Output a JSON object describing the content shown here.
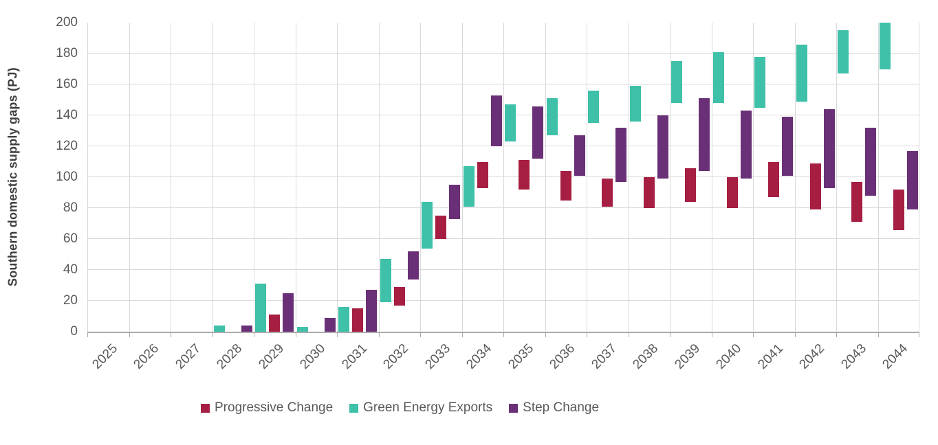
{
  "chart_data": {
    "type": "bar",
    "variant": "floating-range-columns",
    "title": "",
    "xlabel": "",
    "ylabel": "Southern domestic supply gaps (PJ)",
    "ylim": [
      0,
      200
    ],
    "yticks": [
      0,
      20,
      40,
      60,
      80,
      100,
      120,
      140,
      160,
      180,
      200
    ],
    "grid": true,
    "gridline_color": "#D9D9D9",
    "axis_color": "#ABABAB",
    "text_color": "#595959",
    "categories": [
      "2025",
      "2026",
      "2027",
      "2028",
      "2029",
      "2030",
      "2031",
      "2032",
      "2033",
      "2034",
      "2035",
      "2036",
      "2037",
      "2038",
      "2039",
      "2040",
      "2041",
      "2042",
      "2043",
      "2044"
    ],
    "series": [
      {
        "name": "Green Energy Exports",
        "color": "#3EC0A9",
        "ranges": [
          [
            0,
            0
          ],
          [
            0,
            0
          ],
          [
            0,
            0
          ],
          [
            0,
            4
          ],
          [
            0,
            31
          ],
          [
            0,
            3
          ],
          [
            0,
            16
          ],
          [
            19,
            47
          ],
          [
            54,
            84
          ],
          [
            81,
            107
          ],
          [
            123,
            147
          ],
          [
            127,
            151
          ],
          [
            135,
            156
          ],
          [
            136,
            159
          ],
          [
            148,
            175
          ],
          [
            148,
            181
          ],
          [
            145,
            178
          ],
          [
            149,
            186
          ],
          [
            167,
            195
          ],
          [
            170,
            200
          ]
        ]
      },
      {
        "name": "Progressive Change",
        "color": "#A61E42",
        "ranges": [
          [
            0,
            0
          ],
          [
            0,
            0
          ],
          [
            0,
            0
          ],
          [
            0,
            0
          ],
          [
            0,
            11
          ],
          [
            0,
            0
          ],
          [
            0,
            15
          ],
          [
            17,
            29
          ],
          [
            60,
            75
          ],
          [
            93,
            110
          ],
          [
            92,
            111
          ],
          [
            85,
            104
          ],
          [
            81,
            99
          ],
          [
            80,
            100
          ],
          [
            84,
            106
          ],
          [
            80,
            100
          ],
          [
            87,
            110
          ],
          [
            79,
            109
          ],
          [
            71,
            97
          ],
          [
            66,
            92
          ]
        ]
      },
      {
        "name": "Step Change",
        "color": "#6A3077",
        "ranges": [
          [
            0,
            0
          ],
          [
            0,
            0
          ],
          [
            0,
            0
          ],
          [
            0,
            4
          ],
          [
            0,
            25
          ],
          [
            0,
            9
          ],
          [
            0,
            27
          ],
          [
            34,
            52
          ],
          [
            73,
            95
          ],
          [
            120,
            153
          ],
          [
            112,
            146
          ],
          [
            101,
            127
          ],
          [
            97,
            132
          ],
          [
            99,
            140
          ],
          [
            104,
            151
          ],
          [
            99,
            143
          ],
          [
            101,
            139
          ],
          [
            93,
            144
          ],
          [
            88,
            132
          ],
          [
            79,
            117
          ]
        ]
      }
    ],
    "legend": {
      "position": "bottom",
      "items": [
        {
          "label": "Progressive Change",
          "color": "#A61E42"
        },
        {
          "label": "Green Energy Exports",
          "color": "#3EC0A9"
        },
        {
          "label": "Step Change",
          "color": "#6A3077"
        }
      ]
    }
  }
}
